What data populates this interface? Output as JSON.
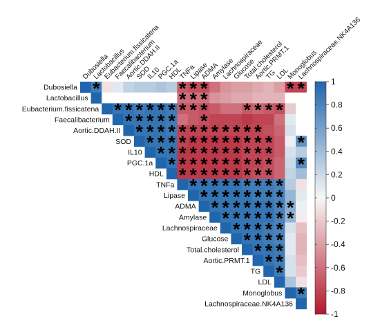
{
  "chart_data": {
    "type": "heatmap",
    "variables": [
      "Dubosiella",
      "Lactobacillus",
      "Eubacterium.fissicatena",
      "Faecalibacterium",
      "Aortic.DDAH.II",
      "SOD",
      "IL10",
      "PGC.1a",
      "HDL",
      "TNFa",
      "Lipase",
      "ADMA",
      "Amylase",
      "Lachnospiraceae",
      "Glucose",
      "Total.cholesterol",
      "Aortic.PRMT.1",
      "TG",
      "LDL",
      "Monoglobus",
      "Lachnospiraceae.NK4A136"
    ],
    "matrix": [
      [
        1,
        0.85,
        -0.1,
        0.1,
        0.25,
        0.3,
        0.3,
        0.35,
        0.3,
        -0.7,
        -0.75,
        -0.75,
        -0.6,
        -0.45,
        -0.4,
        -0.4,
        -0.35,
        -0.3,
        -0.4,
        -0.8,
        -0.8
      ],
      [
        0.85,
        1,
        null,
        null,
        null,
        null,
        null,
        null,
        null,
        -0.6,
        -0.6,
        -0.6,
        -0.45,
        -0.4,
        -0.35,
        -0.35,
        -0.3,
        -0.3,
        -0.3,
        null,
        null
      ],
      [
        -0.1,
        null,
        1,
        0.9,
        0.9,
        0.85,
        0.9,
        0.9,
        0.85,
        -0.7,
        -0.7,
        -0.75,
        -0.7,
        -0.6,
        -0.6,
        -0.7,
        -0.65,
        -0.7,
        -0.75,
        -0.2,
        null
      ],
      [
        0.1,
        null,
        0.9,
        1,
        0.9,
        0.9,
        0.9,
        0.9,
        0.85,
        -0.6,
        -0.7,
        -0.75,
        -0.8,
        -0.8,
        -0.8,
        -0.85,
        -0.8,
        -0.8,
        -0.6,
        0.1,
        null
      ],
      [
        0.25,
        null,
        0.9,
        0.9,
        1,
        0.9,
        0.9,
        0.9,
        0.85,
        -0.8,
        -0.8,
        -0.8,
        -0.8,
        -0.8,
        -0.8,
        -0.8,
        -0.8,
        -0.75,
        -0.65,
        0.15,
        null
      ],
      [
        0.3,
        null,
        0.85,
        0.9,
        0.9,
        1,
        0.9,
        0.9,
        0.9,
        -0.8,
        -0.85,
        -0.85,
        -0.85,
        -0.85,
        -0.85,
        -0.8,
        -0.8,
        -0.8,
        -0.7,
        0.05,
        0.7
      ],
      [
        0.3,
        null,
        0.9,
        0.9,
        0.9,
        0.9,
        1,
        0.9,
        0.9,
        -0.85,
        -0.85,
        -0.85,
        -0.85,
        -0.85,
        -0.85,
        -0.8,
        -0.8,
        -0.8,
        -0.7,
        0.15,
        0.3
      ],
      [
        0.35,
        null,
        0.9,
        0.9,
        0.9,
        0.9,
        0.9,
        1,
        0.9,
        -0.85,
        -0.85,
        -0.85,
        -0.85,
        -0.85,
        -0.85,
        -0.8,
        -0.8,
        -0.75,
        -0.65,
        0.2,
        0.75
      ],
      [
        0.3,
        null,
        0.85,
        0.85,
        0.85,
        0.9,
        0.9,
        0.9,
        1,
        -0.85,
        -0.85,
        -0.85,
        -0.85,
        -0.85,
        -0.85,
        -0.8,
        -0.75,
        -0.75,
        -0.65,
        0.25,
        0.4
      ],
      [
        -0.7,
        -0.6,
        -0.7,
        -0.6,
        -0.8,
        -0.8,
        -0.85,
        -0.85,
        -0.85,
        1,
        0.9,
        0.9,
        0.9,
        0.9,
        0.9,
        0.85,
        0.85,
        0.85,
        0.8,
        0.3,
        -0.1
      ],
      [
        -0.75,
        -0.6,
        -0.7,
        -0.7,
        -0.8,
        -0.85,
        -0.85,
        -0.85,
        -0.85,
        0.9,
        1,
        0.9,
        0.9,
        0.9,
        0.9,
        0.9,
        0.85,
        0.85,
        0.8,
        0.45,
        0.1
      ],
      [
        -0.75,
        -0.6,
        -0.75,
        -0.75,
        -0.8,
        -0.85,
        -0.85,
        -0.85,
        -0.85,
        0.9,
        0.9,
        1,
        0.9,
        0.9,
        0.9,
        0.9,
        0.9,
        0.9,
        0.8,
        0.5,
        0.05
      ],
      [
        -0.6,
        -0.45,
        -0.7,
        -0.8,
        -0.8,
        -0.85,
        -0.85,
        -0.85,
        -0.85,
        0.9,
        0.9,
        0.9,
        1,
        0.9,
        0.9,
        0.9,
        0.9,
        0.9,
        0.8,
        0.45,
        -0.05
      ],
      [
        -0.45,
        -0.4,
        -0.6,
        -0.8,
        -0.8,
        -0.85,
        -0.85,
        -0.85,
        -0.85,
        0.9,
        0.9,
        0.9,
        0.9,
        1,
        0.9,
        0.9,
        0.9,
        0.85,
        0.8,
        0.15,
        -0.25
      ],
      [
        -0.4,
        -0.35,
        -0.6,
        -0.8,
        -0.8,
        -0.85,
        -0.85,
        -0.85,
        -0.85,
        0.9,
        0.9,
        0.9,
        0.9,
        0.9,
        1,
        0.9,
        0.9,
        0.85,
        0.8,
        0.1,
        -0.3
      ],
      [
        -0.4,
        -0.35,
        -0.7,
        -0.85,
        -0.8,
        -0.8,
        -0.8,
        -0.8,
        -0.8,
        0.85,
        0.9,
        0.9,
        0.9,
        0.9,
        0.9,
        1,
        0.9,
        0.9,
        0.85,
        0.1,
        -0.3
      ],
      [
        -0.35,
        -0.3,
        -0.65,
        -0.8,
        -0.8,
        -0.8,
        -0.8,
        -0.8,
        -0.75,
        0.85,
        0.85,
        0.9,
        0.9,
        0.9,
        0.9,
        0.9,
        1,
        0.9,
        0.85,
        0.15,
        -0.25
      ],
      [
        -0.3,
        -0.3,
        -0.7,
        -0.8,
        -0.75,
        -0.8,
        -0.8,
        -0.75,
        -0.75,
        0.85,
        0.85,
        0.9,
        0.9,
        0.85,
        0.85,
        0.9,
        0.9,
        1,
        0.85,
        0.15,
        -0.2
      ],
      [
        -0.4,
        -0.3,
        -0.75,
        -0.6,
        -0.65,
        -0.7,
        -0.7,
        -0.65,
        -0.65,
        0.8,
        0.8,
        0.8,
        0.8,
        0.8,
        0.8,
        0.85,
        0.85,
        0.85,
        1,
        0.35,
        -0.1
      ],
      [
        -0.8,
        null,
        -0.2,
        0.1,
        0.15,
        0.05,
        0.15,
        0.2,
        0.25,
        0.3,
        0.45,
        0.5,
        0.45,
        0.15,
        0.1,
        0.1,
        0.15,
        0.15,
        0.35,
        1,
        0.85
      ],
      [
        -0.8,
        null,
        null,
        null,
        null,
        0.7,
        0.3,
        0.75,
        0.4,
        -0.1,
        0.1,
        0.05,
        -0.05,
        -0.25,
        -0.3,
        -0.3,
        -0.25,
        -0.2,
        -0.1,
        0.85,
        1
      ]
    ],
    "significant": [
      [
        false,
        true,
        false,
        false,
        false,
        false,
        false,
        false,
        false,
        true,
        true,
        true,
        false,
        false,
        false,
        false,
        false,
        false,
        false,
        true,
        true
      ],
      [
        true,
        false,
        false,
        false,
        false,
        false,
        false,
        false,
        false,
        true,
        true,
        true,
        false,
        false,
        false,
        false,
        false,
        false,
        false,
        false,
        false
      ],
      [
        false,
        false,
        false,
        true,
        true,
        true,
        true,
        true,
        true,
        true,
        true,
        true,
        false,
        false,
        false,
        true,
        true,
        true,
        true,
        false,
        false
      ],
      [
        false,
        false,
        true,
        false,
        true,
        true,
        true,
        true,
        true,
        false,
        false,
        true,
        false,
        false,
        false,
        false,
        false,
        false,
        false,
        false,
        false
      ],
      [
        false,
        false,
        true,
        true,
        false,
        true,
        true,
        true,
        true,
        true,
        true,
        true,
        true,
        true,
        true,
        true,
        true,
        false,
        false,
        false,
        false
      ],
      [
        false,
        false,
        true,
        true,
        true,
        false,
        true,
        true,
        true,
        true,
        true,
        true,
        true,
        true,
        true,
        true,
        true,
        true,
        false,
        false,
        true
      ],
      [
        false,
        false,
        true,
        true,
        true,
        true,
        false,
        true,
        true,
        true,
        true,
        true,
        true,
        true,
        true,
        true,
        true,
        true,
        false,
        false,
        false
      ],
      [
        false,
        false,
        true,
        true,
        true,
        true,
        true,
        false,
        true,
        true,
        true,
        true,
        true,
        true,
        true,
        true,
        true,
        true,
        false,
        false,
        true
      ],
      [
        false,
        false,
        true,
        true,
        true,
        true,
        true,
        true,
        false,
        true,
        true,
        true,
        true,
        true,
        true,
        true,
        true,
        true,
        false,
        false,
        false
      ],
      [
        true,
        true,
        true,
        false,
        true,
        true,
        true,
        true,
        true,
        false,
        true,
        true,
        true,
        true,
        true,
        true,
        true,
        true,
        true,
        false,
        false
      ],
      [
        true,
        true,
        true,
        false,
        true,
        true,
        true,
        true,
        true,
        true,
        false,
        true,
        true,
        true,
        true,
        true,
        true,
        true,
        true,
        false,
        false
      ],
      [
        true,
        true,
        true,
        true,
        true,
        true,
        true,
        true,
        true,
        true,
        true,
        false,
        true,
        true,
        true,
        true,
        true,
        true,
        true,
        true,
        false
      ],
      [
        false,
        false,
        false,
        false,
        true,
        true,
        true,
        true,
        true,
        true,
        true,
        true,
        false,
        true,
        true,
        true,
        true,
        true,
        true,
        true,
        false
      ],
      [
        false,
        false,
        false,
        false,
        true,
        true,
        true,
        true,
        true,
        true,
        true,
        true,
        true,
        false,
        true,
        true,
        true,
        true,
        true,
        false,
        false
      ],
      [
        false,
        false,
        false,
        false,
        true,
        true,
        true,
        true,
        true,
        true,
        true,
        true,
        true,
        true,
        false,
        true,
        true,
        true,
        true,
        false,
        false
      ],
      [
        false,
        false,
        true,
        false,
        true,
        true,
        true,
        true,
        true,
        true,
        true,
        true,
        true,
        true,
        true,
        false,
        true,
        true,
        true,
        false,
        false
      ],
      [
        false,
        false,
        true,
        false,
        true,
        true,
        true,
        true,
        true,
        true,
        true,
        true,
        true,
        true,
        true,
        true,
        false,
        true,
        true,
        false,
        false
      ],
      [
        false,
        false,
        true,
        false,
        false,
        true,
        true,
        true,
        true,
        true,
        true,
        true,
        true,
        true,
        true,
        true,
        true,
        false,
        true,
        false,
        false
      ],
      [
        false,
        false,
        true,
        false,
        false,
        false,
        false,
        false,
        false,
        true,
        true,
        true,
        true,
        true,
        true,
        true,
        true,
        true,
        false,
        false,
        false
      ],
      [
        true,
        false,
        false,
        false,
        false,
        false,
        false,
        false,
        false,
        false,
        false,
        true,
        true,
        false,
        false,
        false,
        false,
        false,
        false,
        false,
        true
      ],
      [
        true,
        false,
        false,
        false,
        false,
        true,
        false,
        true,
        false,
        false,
        false,
        false,
        false,
        false,
        false,
        false,
        false,
        false,
        false,
        true,
        false
      ]
    ],
    "significance_marker": "*",
    "layout": "upper-triangle",
    "colorbar": {
      "range": [
        -1,
        1
      ],
      "ticks": [
        1,
        0.8,
        0.6,
        0.4,
        0.2,
        0,
        -0.2,
        -0.4,
        -0.6,
        -0.8,
        -1
      ],
      "tick_labels": [
        "1",
        "0.8",
        "0.6",
        "0.4",
        "0.2",
        "0",
        "-0.2",
        "-0.4",
        "-0.6",
        "-0.8",
        "-1"
      ],
      "colors": {
        "negative": "#b2182b",
        "neutral": "#f7f7f7",
        "positive": "#2166ac"
      }
    },
    "title": "",
    "xlabel": "",
    "ylabel": ""
  }
}
